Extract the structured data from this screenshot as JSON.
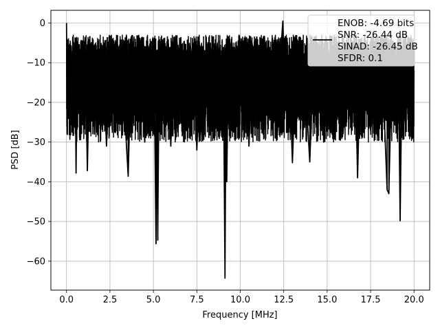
{
  "chart_data": {
    "type": "line",
    "xlabel": "Frequency [MHz]",
    "ylabel": "PSD [dB]",
    "xlim": [
      -0.9,
      20.9
    ],
    "ylim": [
      -67.3,
      3.2
    ],
    "xticks": [
      0.0,
      2.5,
      5.0,
      7.5,
      10.0,
      12.5,
      15.0,
      17.5,
      20.0
    ],
    "xtick_labels": [
      "0.0",
      "2.5",
      "5.0",
      "7.5",
      "10.0",
      "12.5",
      "15.0",
      "17.5",
      "20.0"
    ],
    "yticks": [
      0,
      -10,
      -20,
      -30,
      -40,
      -50,
      -60
    ],
    "ytick_labels": [
      "0",
      "−10",
      "−20",
      "−30",
      "−40",
      "−50",
      "−60"
    ],
    "grid": true,
    "legend_position": "top-right",
    "legend_lines": [
      "ENOB: -4.69 bits",
      "SNR: -26.44 dB",
      "SINAD: -26.45 dB",
      "SFDR: 0.1"
    ],
    "series": [
      {
        "color": "#000000",
        "trace_description": "dense noisy spectrum, band roughly -30 to -3 dB across 0-20 MHz",
        "points": [
          [
            0.0,
            0.0
          ],
          [
            0.03,
            -18.0
          ],
          [
            0.06,
            -8.0
          ],
          [
            0.1,
            -24.0
          ],
          [
            0.15,
            -10.0
          ],
          [
            0.2,
            -22.0
          ],
          [
            0.3,
            -16.0
          ],
          [
            0.45,
            -25.0
          ],
          [
            0.5,
            -12.0
          ],
          [
            0.55,
            -37.8
          ],
          [
            0.6,
            -14.0
          ],
          [
            0.75,
            -22.0
          ],
          [
            0.9,
            -10.0
          ],
          [
            1.0,
            -26.0
          ],
          [
            1.1,
            -12.0
          ],
          [
            1.2,
            -37.2
          ],
          [
            1.3,
            -15.0
          ],
          [
            1.5,
            -9.0
          ],
          [
            1.6,
            -28.0
          ],
          [
            1.75,
            -11.0
          ],
          [
            1.9,
            -25.0
          ],
          [
            2.1,
            -9.0
          ],
          [
            2.3,
            -31.0
          ],
          [
            2.5,
            -12.0
          ],
          [
            2.7,
            -20.0
          ],
          [
            2.85,
            -8.5
          ],
          [
            3.0,
            -24.0
          ],
          [
            3.2,
            -10.0
          ],
          [
            3.4,
            -27.0
          ],
          [
            3.55,
            -38.6
          ],
          [
            3.7,
            -13.0
          ],
          [
            3.9,
            -9.0
          ],
          [
            4.1,
            -25.0
          ],
          [
            4.3,
            -8.0
          ],
          [
            4.5,
            -30.0
          ],
          [
            4.7,
            -11.0
          ],
          [
            4.9,
            -22.0
          ],
          [
            5.05,
            -13.0
          ],
          [
            5.15,
            -55.6
          ],
          [
            5.2,
            -20.0
          ],
          [
            5.25,
            -54.7
          ],
          [
            5.32,
            -16.0
          ],
          [
            5.5,
            -8.0
          ],
          [
            5.7,
            -23.0
          ],
          [
            5.85,
            -7.5
          ],
          [
            6.0,
            -31.0
          ],
          [
            6.2,
            -10.0
          ],
          [
            6.4,
            -20.0
          ],
          [
            6.55,
            -6.0
          ],
          [
            6.7,
            -27.0
          ],
          [
            6.9,
            -9.0
          ],
          [
            7.1,
            -22.0
          ],
          [
            7.3,
            -5.5
          ],
          [
            7.5,
            -32.0
          ],
          [
            7.7,
            -9.0
          ],
          [
            7.9,
            -25.0
          ],
          [
            8.1,
            -7.0
          ],
          [
            8.3,
            -20.0
          ],
          [
            8.5,
            -6.0
          ],
          [
            8.7,
            -27.0
          ],
          [
            8.9,
            -9.0
          ],
          [
            9.05,
            -22.0
          ],
          [
            9.12,
            -64.3
          ],
          [
            9.18,
            -12.0
          ],
          [
            9.22,
            -40.0
          ],
          [
            9.3,
            -14.0
          ],
          [
            9.5,
            -8.0
          ],
          [
            9.7,
            -25.0
          ],
          [
            9.9,
            -6.0
          ],
          [
            10.1,
            -22.0
          ],
          [
            10.3,
            -10.0
          ],
          [
            10.5,
            -31.0
          ],
          [
            10.7,
            -8.0
          ],
          [
            10.9,
            -23.0
          ],
          [
            11.1,
            -6.0
          ],
          [
            11.3,
            -27.0
          ],
          [
            11.5,
            -9.0
          ],
          [
            11.7,
            -20.0
          ],
          [
            11.9,
            -5.0
          ],
          [
            12.1,
            -24.0
          ],
          [
            12.3,
            -9.0
          ],
          [
            12.45,
            0.5
          ],
          [
            12.6,
            -22.0
          ],
          [
            12.8,
            -8.0
          ],
          [
            13.0,
            -35.2
          ],
          [
            13.2,
            -11.0
          ],
          [
            13.4,
            -24.0
          ],
          [
            13.6,
            -8.0
          ],
          [
            13.8,
            -20.0
          ],
          [
            14.0,
            -35.0
          ],
          [
            14.2,
            -10.0
          ],
          [
            14.4,
            -23.0
          ],
          [
            14.6,
            -8.0
          ],
          [
            14.8,
            -30.0
          ],
          [
            15.0,
            -11.0
          ],
          [
            15.2,
            -25.0
          ],
          [
            15.4,
            -9.0
          ],
          [
            15.6,
            -20.0
          ],
          [
            15.8,
            -7.0
          ],
          [
            16.0,
            -24.0
          ],
          [
            16.2,
            -10.0
          ],
          [
            16.4,
            -22.0
          ],
          [
            16.6,
            -8.0
          ],
          [
            16.75,
            -39.0
          ],
          [
            16.9,
            -12.0
          ],
          [
            17.1,
            -24.0
          ],
          [
            17.3,
            -10.0
          ],
          [
            17.5,
            -27.0
          ],
          [
            17.7,
            -9.0
          ],
          [
            17.9,
            -22.0
          ],
          [
            18.1,
            -8.0
          ],
          [
            18.3,
            -25.0
          ],
          [
            18.45,
            -42.0
          ],
          [
            18.55,
            -43.0
          ],
          [
            18.7,
            -15.0
          ],
          [
            18.9,
            -23.0
          ],
          [
            19.1,
            -10.0
          ],
          [
            19.2,
            -49.8
          ],
          [
            19.3,
            -14.0
          ],
          [
            19.5,
            -25.0
          ],
          [
            19.7,
            -10.0
          ],
          [
            19.85,
            -22.0
          ],
          [
            20.0,
            -12.0
          ]
        ]
      }
    ]
  }
}
